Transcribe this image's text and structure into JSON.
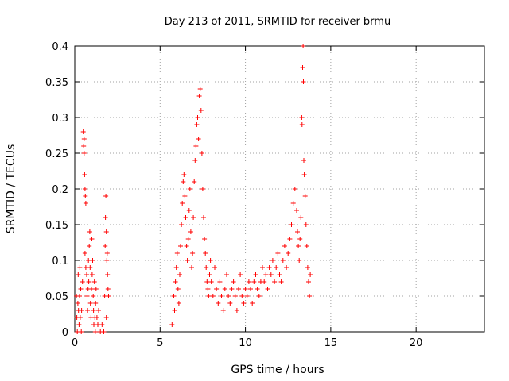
{
  "chart_data": {
    "type": "scatter",
    "title": "Day 213 of 2011, SRMTID for receiver brmu",
    "xlabel": "GPS time / hours",
    "ylabel": "SRMTID / TECUs",
    "xlim": [
      0,
      24
    ],
    "ylim": [
      0,
      0.4
    ],
    "xticks": [
      0,
      5,
      10,
      15,
      20
    ],
    "yticks": [
      0,
      0.05,
      0.1,
      0.15,
      0.2,
      0.25,
      0.3,
      0.35,
      0.4
    ],
    "xtick_labels": [
      "0",
      "5",
      "10",
      "15",
      "20"
    ],
    "ytick_labels": [
      "0",
      "0.05",
      "0.1",
      "0.15",
      "0.2",
      "0.25",
      "0.3",
      "0.35",
      "0.4"
    ],
    "grid": true,
    "marker": "+",
    "color": "#ff0000",
    "series": [
      {
        "values": [
          [
            0.1,
            0.05
          ],
          [
            0.12,
            0.02
          ],
          [
            0.15,
            0.0
          ],
          [
            0.18,
            0.04
          ],
          [
            0.2,
            0.08
          ],
          [
            0.22,
            0.03
          ],
          [
            0.25,
            0.01
          ],
          [
            0.28,
            0.05
          ],
          [
            0.3,
            0.09
          ],
          [
            0.32,
            0.02
          ],
          [
            0.35,
            0.06
          ],
          [
            0.38,
            0.0
          ],
          [
            0.4,
            0.03
          ],
          [
            0.45,
            0.07
          ],
          [
            0.5,
            0.28
          ],
          [
            0.52,
            0.26
          ],
          [
            0.55,
            0.25
          ],
          [
            0.58,
            0.22
          ],
          [
            0.6,
            0.2
          ],
          [
            0.62,
            0.19
          ],
          [
            0.65,
            0.18
          ],
          [
            0.55,
            0.27
          ],
          [
            0.6,
            0.11
          ],
          [
            0.65,
            0.09
          ],
          [
            0.7,
            0.08
          ],
          [
            0.72,
            0.05
          ],
          [
            0.75,
            0.03
          ],
          [
            0.78,
            0.06
          ],
          [
            0.8,
            0.1
          ],
          [
            0.82,
            0.07
          ],
          [
            0.85,
            0.12
          ],
          [
            0.88,
            0.14
          ],
          [
            0.9,
            0.09
          ],
          [
            0.92,
            0.04
          ],
          [
            0.95,
            0.02
          ],
          [
            0.98,
            0.06
          ],
          [
            1.0,
            0.13
          ],
          [
            1.02,
            0.08
          ],
          [
            1.05,
            0.1
          ],
          [
            1.08,
            0.05
          ],
          [
            1.1,
            0.03
          ],
          [
            1.12,
            0.01
          ],
          [
            1.15,
            0.07
          ],
          [
            1.18,
            0.02
          ],
          [
            1.2,
            0.0
          ],
          [
            1.22,
            0.04
          ],
          [
            1.25,
            0.06
          ],
          [
            1.3,
            0.02
          ],
          [
            1.35,
            0.01
          ],
          [
            1.4,
            0.03
          ],
          [
            1.5,
            0.0
          ],
          [
            1.6,
            0.01
          ],
          [
            1.7,
            0.0
          ],
          [
            1.75,
            0.05
          ],
          [
            1.78,
            0.12
          ],
          [
            1.8,
            0.16
          ],
          [
            1.82,
            0.19
          ],
          [
            1.85,
            0.14
          ],
          [
            1.88,
            0.1
          ],
          [
            1.9,
            0.11
          ],
          [
            1.92,
            0.08
          ],
          [
            1.95,
            0.06
          ],
          [
            1.98,
            0.05
          ],
          [
            1.85,
            0.02
          ],
          [
            5.7,
            0.01
          ],
          [
            5.8,
            0.05
          ],
          [
            5.85,
            0.03
          ],
          [
            5.9,
            0.07
          ],
          [
            5.95,
            0.09
          ],
          [
            6.0,
            0.11
          ],
          [
            6.05,
            0.06
          ],
          [
            6.1,
            0.04
          ],
          [
            6.15,
            0.08
          ],
          [
            6.2,
            0.12
          ],
          [
            6.25,
            0.15
          ],
          [
            6.3,
            0.18
          ],
          [
            6.35,
            0.21
          ],
          [
            6.4,
            0.22
          ],
          [
            6.45,
            0.19
          ],
          [
            6.5,
            0.16
          ],
          [
            6.55,
            0.12
          ],
          [
            6.6,
            0.1
          ],
          [
            6.65,
            0.13
          ],
          [
            6.7,
            0.17
          ],
          [
            6.75,
            0.2
          ],
          [
            6.8,
            0.14
          ],
          [
            6.85,
            0.09
          ],
          [
            6.9,
            0.11
          ],
          [
            6.95,
            0.16
          ],
          [
            7.0,
            0.21
          ],
          [
            7.05,
            0.24
          ],
          [
            7.1,
            0.26
          ],
          [
            7.15,
            0.29
          ],
          [
            7.2,
            0.3
          ],
          [
            7.25,
            0.27
          ],
          [
            7.3,
            0.33
          ],
          [
            7.35,
            0.34
          ],
          [
            7.4,
            0.31
          ],
          [
            7.45,
            0.25
          ],
          [
            7.5,
            0.2
          ],
          [
            7.55,
            0.16
          ],
          [
            7.6,
            0.13
          ],
          [
            7.65,
            0.11
          ],
          [
            7.7,
            0.09
          ],
          [
            7.75,
            0.07
          ],
          [
            7.8,
            0.06
          ],
          [
            7.85,
            0.05
          ],
          [
            7.9,
            0.08
          ],
          [
            7.95,
            0.1
          ],
          [
            8.0,
            0.07
          ],
          [
            8.1,
            0.05
          ],
          [
            8.2,
            0.09
          ],
          [
            8.3,
            0.06
          ],
          [
            8.4,
            0.04
          ],
          [
            8.5,
            0.07
          ],
          [
            8.6,
            0.05
          ],
          [
            8.7,
            0.03
          ],
          [
            8.8,
            0.06
          ],
          [
            8.9,
            0.08
          ],
          [
            9.0,
            0.05
          ],
          [
            9.1,
            0.04
          ],
          [
            9.2,
            0.06
          ],
          [
            9.3,
            0.07
          ],
          [
            9.4,
            0.05
          ],
          [
            9.5,
            0.03
          ],
          [
            9.6,
            0.06
          ],
          [
            9.7,
            0.08
          ],
          [
            9.8,
            0.05
          ],
          [
            9.9,
            0.04
          ],
          [
            10.0,
            0.06
          ],
          [
            10.1,
            0.05
          ],
          [
            10.2,
            0.07
          ],
          [
            10.3,
            0.06
          ],
          [
            10.4,
            0.04
          ],
          [
            10.5,
            0.07
          ],
          [
            10.6,
            0.08
          ],
          [
            10.7,
            0.06
          ],
          [
            10.8,
            0.05
          ],
          [
            10.9,
            0.07
          ],
          [
            11.0,
            0.09
          ],
          [
            11.1,
            0.07
          ],
          [
            11.2,
            0.08
          ],
          [
            11.3,
            0.06
          ],
          [
            11.4,
            0.09
          ],
          [
            11.5,
            0.08
          ],
          [
            11.6,
            0.1
          ],
          [
            11.7,
            0.07
          ],
          [
            11.8,
            0.09
          ],
          [
            11.9,
            0.11
          ],
          [
            12.0,
            0.08
          ],
          [
            12.1,
            0.07
          ],
          [
            12.2,
            0.1
          ],
          [
            12.3,
            0.12
          ],
          [
            12.4,
            0.09
          ],
          [
            12.5,
            0.11
          ],
          [
            12.6,
            0.13
          ],
          [
            12.7,
            0.15
          ],
          [
            12.8,
            0.18
          ],
          [
            12.9,
            0.2
          ],
          [
            13.0,
            0.17
          ],
          [
            13.05,
            0.14
          ],
          [
            13.1,
            0.12
          ],
          [
            13.15,
            0.1
          ],
          [
            13.2,
            0.13
          ],
          [
            13.25,
            0.16
          ],
          [
            13.3,
            0.3
          ],
          [
            13.32,
            0.29
          ],
          [
            13.35,
            0.37
          ],
          [
            13.38,
            0.4
          ],
          [
            13.4,
            0.35
          ],
          [
            13.42,
            0.24
          ],
          [
            13.45,
            0.22
          ],
          [
            13.5,
            0.19
          ],
          [
            13.55,
            0.15
          ],
          [
            13.6,
            0.12
          ],
          [
            13.65,
            0.09
          ],
          [
            13.7,
            0.07
          ],
          [
            13.75,
            0.05
          ],
          [
            13.8,
            0.08
          ]
        ]
      }
    ]
  }
}
